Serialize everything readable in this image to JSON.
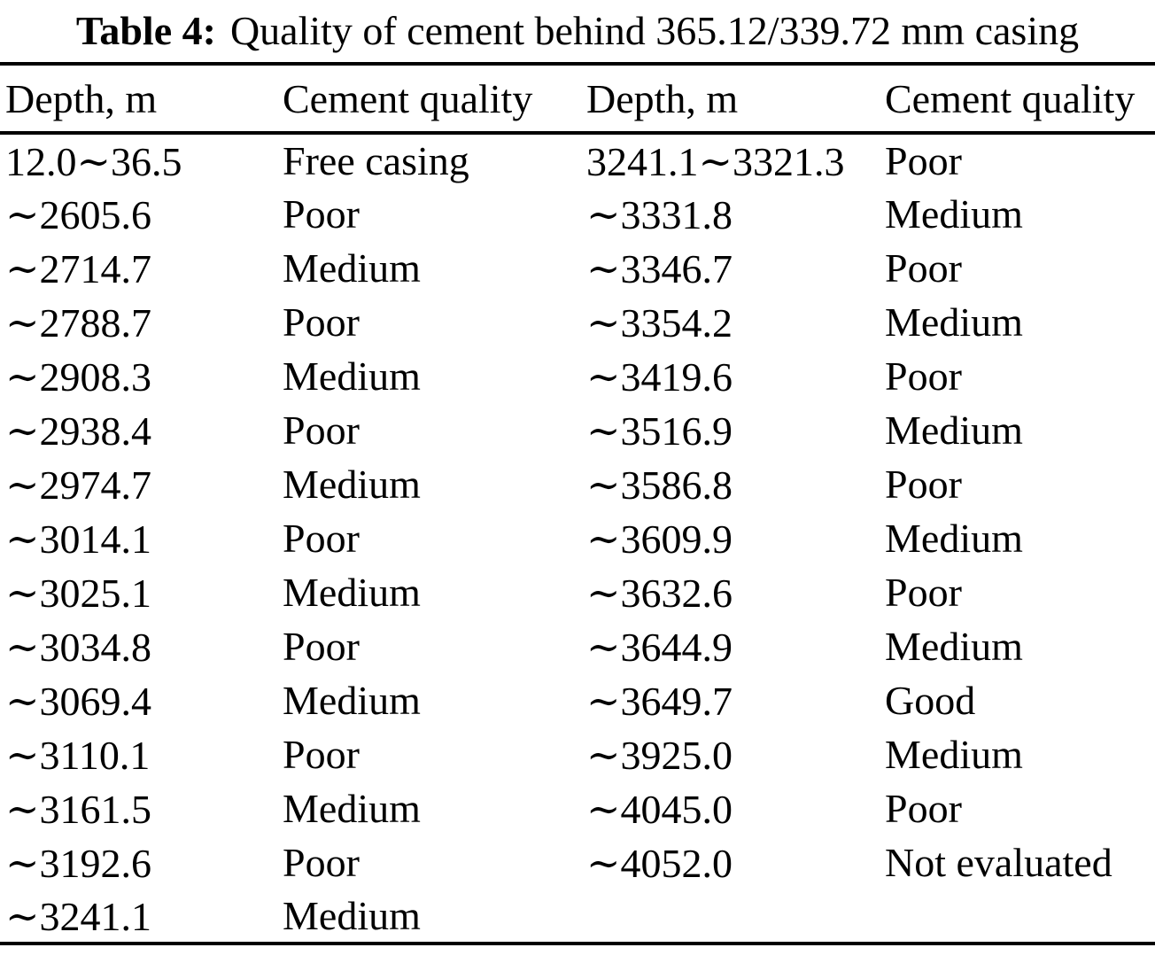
{
  "table": {
    "caption": {
      "label": "Table 4:",
      "text": "Quality of cement behind 365.12/339.72 mm casing"
    },
    "columns": [
      "Depth, m",
      "Cement quality",
      "Depth, m",
      "Cement quality"
    ],
    "rows": [
      [
        "12.0∼36.5",
        "Free casing",
        "3241.1∼3321.3",
        "Poor"
      ],
      [
        "∼2605.6",
        "Poor",
        "∼3331.8",
        "Medium"
      ],
      [
        "∼2714.7",
        "Medium",
        "∼3346.7",
        "Poor"
      ],
      [
        "∼2788.7",
        "Poor",
        "∼3354.2",
        "Medium"
      ],
      [
        "∼2908.3",
        "Medium",
        "∼3419.6",
        "Poor"
      ],
      [
        "∼2938.4",
        "Poor",
        "∼3516.9",
        "Medium"
      ],
      [
        "∼2974.7",
        "Medium",
        "∼3586.8",
        "Poor"
      ],
      [
        "∼3014.1",
        "Poor",
        "∼3609.9",
        "Medium"
      ],
      [
        "∼3025.1",
        "Medium",
        "∼3632.6",
        "Poor"
      ],
      [
        "∼3034.8",
        "Poor",
        "∼3644.9",
        "Medium"
      ],
      [
        "∼3069.4",
        "Medium",
        "∼3649.7",
        "Good"
      ],
      [
        "∼3110.1",
        "Poor",
        "∼3925.0",
        "Medium"
      ],
      [
        "∼3161.5",
        "Medium",
        "∼4045.0",
        "Poor"
      ],
      [
        "∼3192.6",
        "Poor",
        "∼4052.0",
        "Not evaluated"
      ],
      [
        "∼3241.1",
        "Medium",
        "",
        ""
      ]
    ],
    "colors": {
      "text": "#000000",
      "background": "#ffffff",
      "rule": "#000000"
    }
  }
}
